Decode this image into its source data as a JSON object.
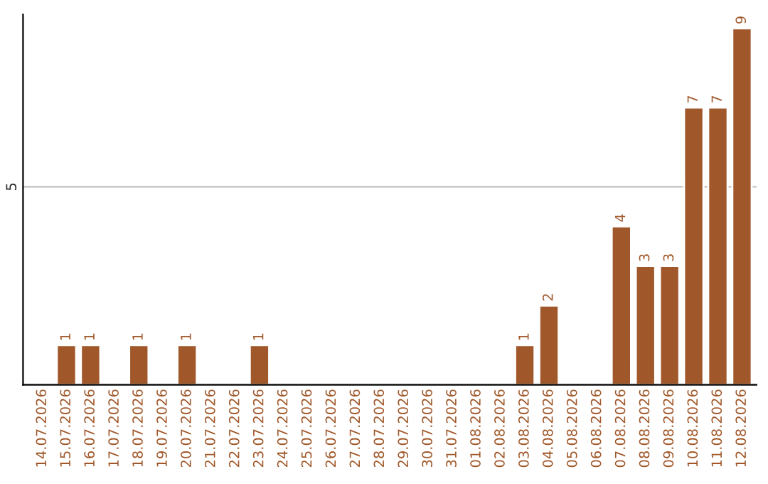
{
  "chart_data": {
    "type": "bar",
    "categories": [
      "14.07.2026",
      "15.07.2026",
      "16.07.2026",
      "17.07.2026",
      "18.07.2026",
      "19.07.2026",
      "20.07.2026",
      "21.07.2026",
      "22.07.2026",
      "23.07.2026",
      "24.07.2026",
      "25.07.2026",
      "26.07.2026",
      "27.07.2026",
      "28.07.2026",
      "29.07.2026",
      "30.07.2026",
      "31.07.2026",
      "01.08.2026",
      "02.08.2026",
      "03.08.2026",
      "04.08.2026",
      "05.08.2026",
      "06.08.2026",
      "07.08.2026",
      "08.08.2026",
      "09.08.2026",
      "10.08.2026",
      "11.08.2026",
      "12.08.2026"
    ],
    "values": [
      null,
      1,
      1,
      null,
      1,
      null,
      1,
      null,
      null,
      1,
      null,
      null,
      null,
      null,
      null,
      null,
      null,
      null,
      null,
      null,
      1,
      2,
      null,
      null,
      4,
      3,
      3,
      7,
      7,
      9
    ],
    "value_labels": [
      null,
      "1",
      "1",
      null,
      "1",
      null,
      "1",
      null,
      null,
      "1",
      null,
      null,
      null,
      null,
      null,
      null,
      null,
      null,
      null,
      null,
      "1",
      "2",
      null,
      null,
      "4",
      "3",
      "3",
      "7",
      "7",
      "9"
    ],
    "color": "#a0582a",
    "ylim": [
      0,
      9.35
    ],
    "yticks": [
      5
    ],
    "grid": "y",
    "legend": false
  }
}
